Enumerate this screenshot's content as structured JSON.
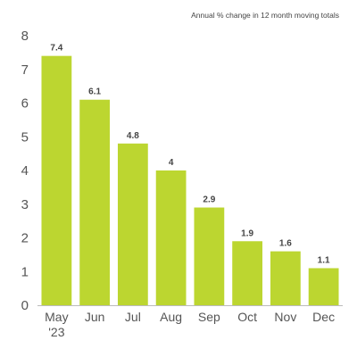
{
  "chart_data": {
    "type": "bar",
    "subtitle": "Annual % change in 12 month moving totals",
    "categories": [
      "May",
      "Jun",
      "Jul",
      "Aug",
      "Sep",
      "Oct",
      "Nov",
      "Dec"
    ],
    "category_sublabels": [
      "'23",
      "",
      "",
      "",
      "",
      "",
      "",
      ""
    ],
    "values": [
      7.4,
      6.1,
      4.8,
      4,
      2.9,
      1.9,
      1.6,
      1.1
    ],
    "value_labels": [
      "7.4",
      "6.1",
      "4.8",
      "4",
      "2.9",
      "1.9",
      "1.6",
      "1.1"
    ],
    "y_ticks": [
      "0",
      "1",
      "2",
      "3",
      "4",
      "5",
      "6",
      "7",
      "8"
    ],
    "ylim": [
      0,
      8
    ],
    "grid": false,
    "colors": {
      "bar": "#bcd630",
      "axis": "#bbbbbb",
      "text": "#555555"
    }
  }
}
